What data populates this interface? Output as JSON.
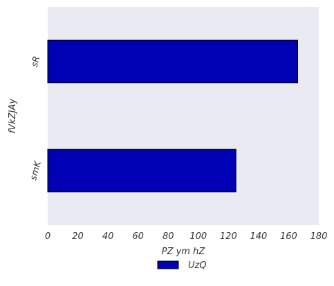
{
  "chart_data": {
    "type": "bar",
    "orientation": "horizontal",
    "title": "",
    "xlabel": "PZ ym hZ",
    "ylabel": "fVkZJAy",
    "categories": [
      "smK",
      "sR"
    ],
    "series": [
      {
        "name": "UzQ",
        "values": [
          125,
          166
        ],
        "color": "#0000b4"
      }
    ],
    "xlim": [
      0,
      180
    ],
    "xticks": [
      0,
      20,
      40,
      60,
      80,
      100,
      120,
      140,
      160,
      180
    ],
    "grid": false,
    "legend_position": "bottom-center",
    "plot_background": "#eaeaf2"
  }
}
